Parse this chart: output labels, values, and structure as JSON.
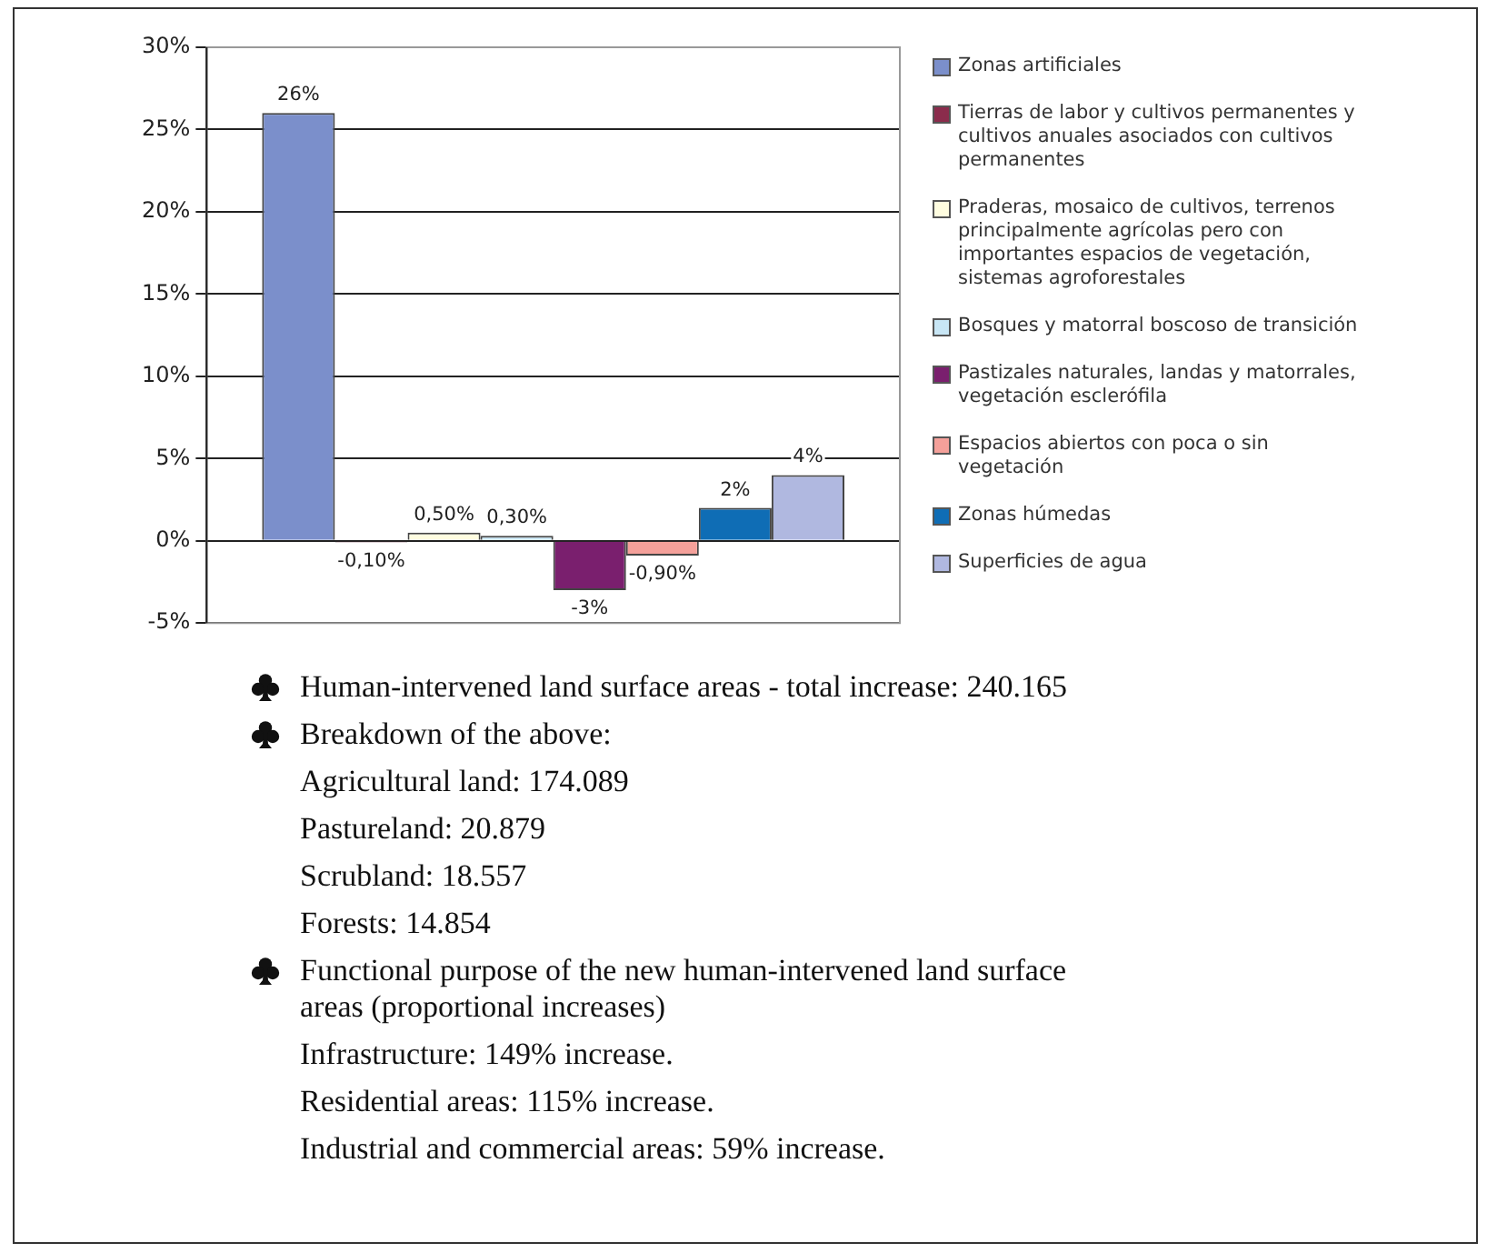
{
  "chart_data": {
    "type": "bar",
    "categories": [
      null
    ],
    "series": [
      {
        "name": "Zonas artificiales",
        "color": "#7b8fcb",
        "values": [
          26
        ],
        "value_labels": [
          "26%"
        ]
      },
      {
        "name": "Tierras de labor y cultivos permanentes y cultivos anuales asociados con cultivos permanentes",
        "color": "#8b2c4c",
        "values": [
          -0.1
        ],
        "value_labels": [
          "-0,10%"
        ]
      },
      {
        "name": "Praderas, mosaico de cultivos, terrenos principalmente agrícolas pero con importantes espacios de vegetación, sistemas agroforestales",
        "color": "#fffde0",
        "values": [
          0.5
        ],
        "value_labels": [
          "0,50%"
        ]
      },
      {
        "name": "Bosques y matorral boscoso de transición",
        "color": "#c8e6f5",
        "values": [
          0.3
        ],
        "value_labels": [
          "0,30%"
        ]
      },
      {
        "name": "Pastizales naturales, landas y matorrales, vegetación esclerófila",
        "color": "#7a1f6e",
        "values": [
          -3
        ],
        "value_labels": [
          "-3%"
        ]
      },
      {
        "name": "Espacios abiertos con poca o sin vegetación",
        "color": "#f4a09a",
        "values": [
          -0.9
        ],
        "value_labels": [
          "-0,90%"
        ]
      },
      {
        "name": "Zonas húmedas",
        "color": "#0f6db5",
        "values": [
          2
        ],
        "value_labels": [
          "2%"
        ]
      },
      {
        "name": "Superficies de agua",
        "color": "#b0b8e0",
        "values": [
          4
        ],
        "value_labels": [
          "4%"
        ]
      }
    ],
    "ylim": [
      -5,
      30
    ],
    "yticks": [
      {
        "value": -5,
        "label": "-5%"
      },
      {
        "value": 0,
        "label": "0%"
      },
      {
        "value": 5,
        "label": "5%"
      },
      {
        "value": 10,
        "label": "10%"
      },
      {
        "value": 15,
        "label": "15%"
      },
      {
        "value": 20,
        "label": "20%"
      },
      {
        "value": 25,
        "label": "25%"
      },
      {
        "value": 30,
        "label": "30%"
      }
    ],
    "grid": "y",
    "legend": "right",
    "annotations": [
      "Human-intervened land surface areas - total increase: 240.165",
      "Breakdown of the above:",
      "Agricultural land: 174.089",
      "Pastureland: 20.879",
      "Scrubland: 18.557",
      "Forests: 14.854",
      "Functional purpose of the new human-intervened land surface areas (proportional increases)",
      "Infrastructure: 149% increase.",
      "Residential areas: 115% increase.",
      "Industrial and commercial areas: 59% increase."
    ]
  }
}
